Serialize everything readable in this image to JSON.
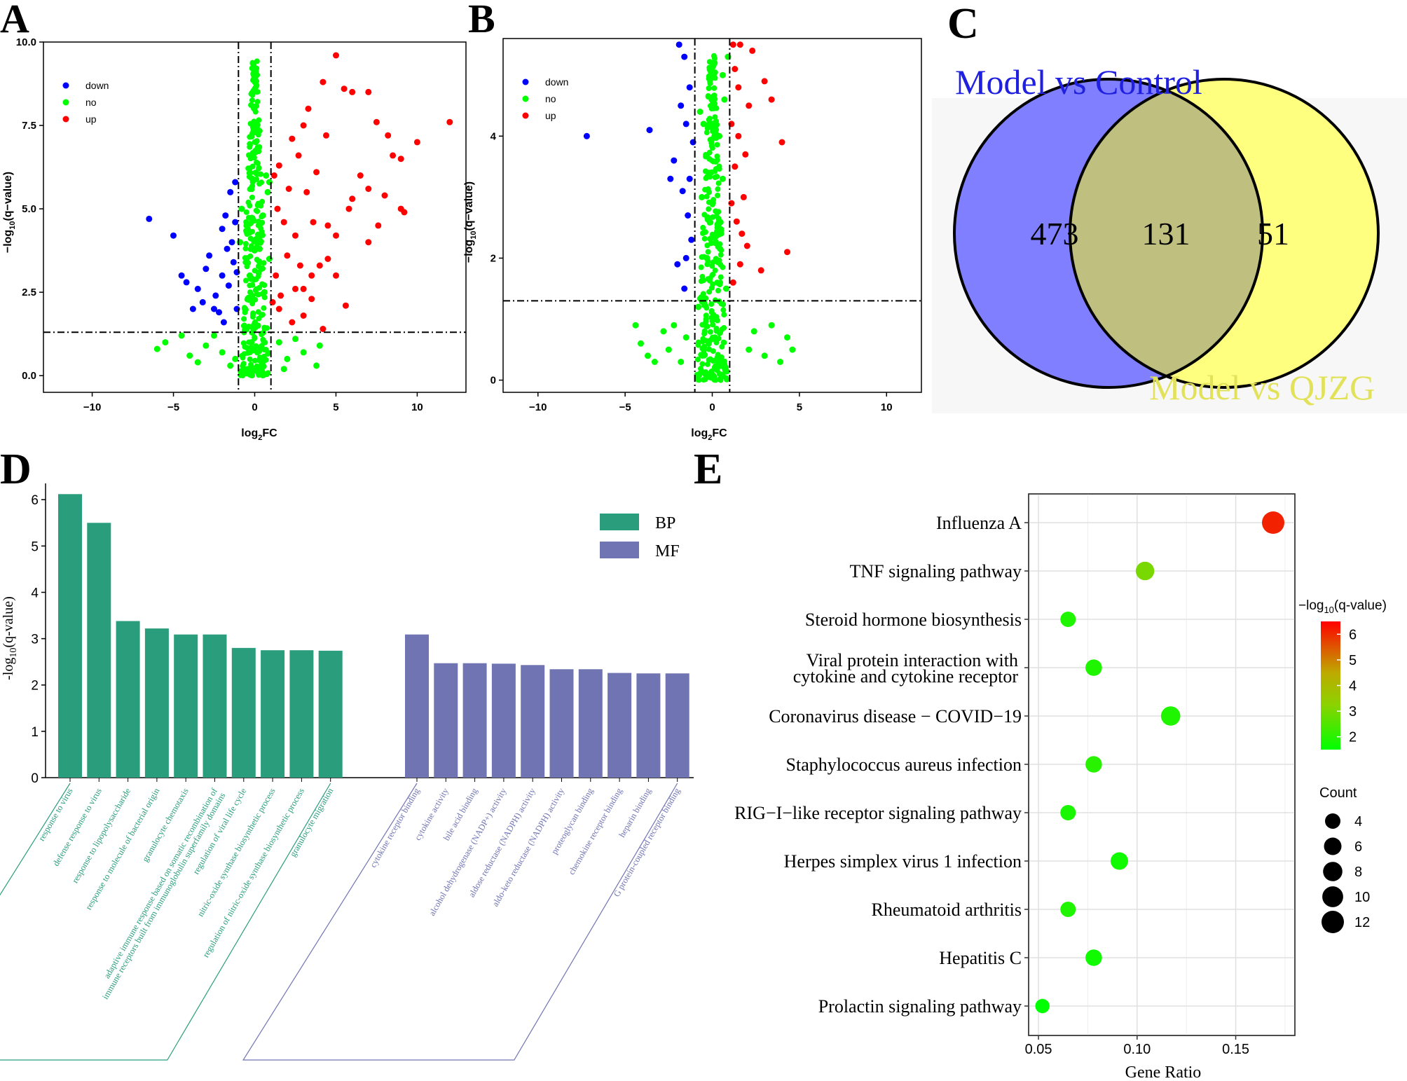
{
  "panel_labels": [
    "A",
    "B",
    "C",
    "D",
    "E"
  ],
  "chart_data": [
    {
      "panel": "A",
      "type": "scatter",
      "title": "",
      "xlabel": "log2FC",
      "ylabel": "-log10(q-value)",
      "xlim": [
        -13,
        13
      ],
      "ylim": [
        -0.5,
        10
      ],
      "xticks": [
        -10,
        -5,
        0,
        5,
        10
      ],
      "yticks": [
        0.0,
        2.5,
        5.0,
        7.5,
        10.0
      ],
      "ytick_labels": [
        "0.0",
        "2.5",
        "5.0",
        "7.5",
        "10.0"
      ],
      "thresholds": {
        "x": [
          -1,
          1
        ],
        "y": 1.3
      },
      "legend": {
        "position": "top-left",
        "entries": [
          {
            "label": "down",
            "color": "#0000ff"
          },
          {
            "label": "no",
            "color": "#00ff00"
          },
          {
            "label": "up",
            "color": "#ff0000"
          }
        ]
      },
      "series": [
        {
          "name": "up",
          "color": "#ff0000",
          "points": [
            [
              5.0,
              9.6
            ],
            [
              4.2,
              8.8
            ],
            [
              5.5,
              8.6
            ],
            [
              6.0,
              8.5
            ],
            [
              7.0,
              8.5
            ],
            [
              12.0,
              7.6
            ],
            [
              10.0,
              7.0
            ],
            [
              7.5,
              7.6
            ],
            [
              8.2,
              7.2
            ],
            [
              8.5,
              6.6
            ],
            [
              9.0,
              6.5
            ],
            [
              6.5,
              6.0
            ],
            [
              7.0,
              5.6
            ],
            [
              6.0,
              5.3
            ],
            [
              5.8,
              5.0
            ],
            [
              9.0,
              5.0
            ],
            [
              8.0,
              5.4
            ],
            [
              9.2,
              4.9
            ],
            [
              7.6,
              4.5
            ],
            [
              7.0,
              4.0
            ],
            [
              5.0,
              4.2
            ],
            [
              4.5,
              3.5
            ],
            [
              5.0,
              3.0
            ],
            [
              4.0,
              3.3
            ],
            [
              3.5,
              3.0
            ],
            [
              3.0,
              2.6
            ],
            [
              5.6,
              2.1
            ],
            [
              2.3,
              1.6
            ],
            [
              4.2,
              1.4
            ],
            [
              3.0,
              1.8
            ],
            [
              3.5,
              2.3
            ],
            [
              2.5,
              2.6
            ],
            [
              4.5,
              4.5
            ],
            [
              3.8,
              6.1
            ],
            [
              4.4,
              7.2
            ],
            [
              3.3,
              8.0
            ],
            [
              3.0,
              7.5
            ],
            [
              2.7,
              6.6
            ],
            [
              3.2,
              5.5
            ],
            [
              2.5,
              4.2
            ],
            [
              1.8,
              4.6
            ],
            [
              2.0,
              3.6
            ],
            [
              1.3,
              3.0
            ],
            [
              1.5,
              2.0
            ],
            [
              1.2,
              6.0
            ],
            [
              1.4,
              5.0
            ],
            [
              1.6,
              2.4
            ],
            [
              2.1,
              5.6
            ],
            [
              2.8,
              3.3
            ],
            [
              3.6,
              4.6
            ],
            [
              2.3,
              7.1
            ],
            [
              1.5,
              6.3
            ],
            [
              1.1,
              2.2
            ]
          ]
        },
        {
          "name": "down",
          "color": "#0000ff",
          "points": [
            [
              -6.5,
              4.7
            ],
            [
              -5.0,
              4.2
            ],
            [
              -4.5,
              3.0
            ],
            [
              -4.2,
              2.8
            ],
            [
              -3.5,
              2.6
            ],
            [
              -3.2,
              2.2
            ],
            [
              -3.0,
              3.2
            ],
            [
              -2.8,
              3.6
            ],
            [
              -2.5,
              2.0
            ],
            [
              -2.2,
              1.9
            ],
            [
              -2.0,
              4.4
            ],
            [
              -1.8,
              4.8
            ],
            [
              -1.5,
              5.5
            ],
            [
              -1.2,
              5.8
            ],
            [
              -1.3,
              3.4
            ],
            [
              -1.6,
              2.7
            ],
            [
              -1.1,
              2.0
            ],
            [
              -2.0,
              3.0
            ],
            [
              -1.4,
              4.0
            ],
            [
              -1.9,
              1.6
            ],
            [
              -1.2,
              4.6
            ],
            [
              -2.4,
              2.4
            ],
            [
              -1.7,
              3.8
            ],
            [
              -1.1,
              3.1
            ],
            [
              -3.8,
              2.0
            ]
          ]
        },
        {
          "name": "no",
          "color": "#00ff00",
          "points": [
            [
              -6.0,
              0.8
            ],
            [
              -5.5,
              1.0
            ],
            [
              -4.5,
              1.2
            ],
            [
              -4.0,
              0.6
            ],
            [
              -3.0,
              0.9
            ],
            [
              -3.5,
              0.4
            ],
            [
              -2.5,
              1.2
            ],
            [
              -2.0,
              0.7
            ],
            [
              -1.5,
              0.3
            ],
            [
              -0.8,
              5.0
            ],
            [
              -0.5,
              4.5
            ],
            [
              0.5,
              4.8
            ],
            [
              0.8,
              5.5
            ],
            [
              0.3,
              3.8
            ],
            [
              -0.3,
              3.0
            ],
            [
              0.6,
              2.5
            ],
            [
              -0.6,
              2.0
            ],
            [
              1.5,
              1.0
            ],
            [
              2.0,
              0.5
            ],
            [
              3.0,
              0.7
            ],
            [
              3.8,
              0.3
            ],
            [
              2.5,
              1.1
            ],
            [
              1.8,
              0.2
            ],
            [
              -1.2,
              0.5
            ],
            [
              0.2,
              1.5
            ],
            [
              -0.2,
              1.0
            ],
            [
              0.4,
              0.5
            ],
            [
              -0.4,
              0.2
            ],
            [
              0.9,
              3.5
            ],
            [
              -0.9,
              4.0
            ],
            [
              0.7,
              6.0
            ],
            [
              0.9,
              5.8
            ],
            [
              4.0,
              0.9
            ]
          ]
        }
      ]
    },
    {
      "panel": "B",
      "type": "scatter",
      "title": "",
      "xlabel": "log2FC",
      "ylabel": "-log10(q-value)",
      "xlim": [
        -12,
        12
      ],
      "ylim": [
        -0.2,
        5.6
      ],
      "xticks": [
        -10,
        -5,
        0,
        5,
        10
      ],
      "yticks": [
        0,
        2,
        4
      ],
      "ytick_labels": [
        "0",
        "2",
        "4"
      ],
      "thresholds": {
        "x": [
          -1,
          1
        ],
        "y": 1.3
      },
      "legend": {
        "position": "top-left",
        "entries": [
          {
            "label": "down",
            "color": "#0000ff"
          },
          {
            "label": "no",
            "color": "#00ff00"
          },
          {
            "label": "up",
            "color": "#ff0000"
          }
        ]
      },
      "series": [
        {
          "name": "up",
          "color": "#ff0000",
          "points": [
            [
              1.2,
              5.5
            ],
            [
              1.6,
              5.5
            ],
            [
              2.3,
              5.4
            ],
            [
              3.0,
              4.9
            ],
            [
              3.4,
              4.6
            ],
            [
              4.0,
              3.9
            ],
            [
              4.3,
              2.1
            ],
            [
              1.5,
              4.8
            ],
            [
              1.1,
              4.2
            ],
            [
              1.3,
              3.5
            ],
            [
              1.8,
              3.0
            ],
            [
              1.4,
              2.6
            ],
            [
              2.0,
              2.2
            ],
            [
              1.6,
              1.9
            ],
            [
              1.2,
              1.6
            ],
            [
              2.8,
              1.8
            ],
            [
              1.5,
              4.0
            ],
            [
              1.9,
              3.7
            ],
            [
              1.1,
              2.9
            ],
            [
              1.7,
              2.4
            ],
            [
              1.3,
              5.1
            ],
            [
              2.1,
              4.5
            ]
          ]
        },
        {
          "name": "down",
          "color": "#0000ff",
          "points": [
            [
              -7.2,
              4.0
            ],
            [
              -3.6,
              4.1
            ],
            [
              -1.9,
              5.5
            ],
            [
              -1.6,
              5.3
            ],
            [
              -1.3,
              4.8
            ],
            [
              -1.8,
              4.5
            ],
            [
              -1.5,
              4.2
            ],
            [
              -2.2,
              3.6
            ],
            [
              -1.7,
              3.1
            ],
            [
              -1.4,
              2.7
            ],
            [
              -1.2,
              2.3
            ],
            [
              -2.0,
              1.9
            ],
            [
              -1.6,
              1.5
            ],
            [
              -1.1,
              3.9
            ],
            [
              -1.3,
              3.3
            ],
            [
              -1.5,
              2.0
            ],
            [
              -2.4,
              3.3
            ]
          ]
        },
        {
          "name": "no",
          "color": "#00ff00",
          "points": [
            [
              -4.4,
              0.9
            ],
            [
              -4.1,
              0.6
            ],
            [
              -3.7,
              0.4
            ],
            [
              -3.3,
              0.3
            ],
            [
              -2.8,
              0.8
            ],
            [
              -2.5,
              0.5
            ],
            [
              -2.2,
              0.9
            ],
            [
              -1.8,
              0.3
            ],
            [
              -1.5,
              0.7
            ],
            [
              2.1,
              0.5
            ],
            [
              2.4,
              0.8
            ],
            [
              3.0,
              0.4
            ],
            [
              3.4,
              0.9
            ],
            [
              3.9,
              0.3
            ],
            [
              4.3,
              0.7
            ],
            [
              4.6,
              0.5
            ],
            [
              -0.5,
              4.2
            ],
            [
              0.4,
              4.0
            ],
            [
              0.6,
              3.3
            ],
            [
              -0.6,
              3.0
            ],
            [
              0.3,
              2.5
            ],
            [
              -0.3,
              2.0
            ],
            [
              0.8,
              1.5
            ],
            [
              -0.8,
              1.2
            ],
            [
              0.2,
              1.0
            ],
            [
              -0.2,
              0.6
            ],
            [
              0.5,
              0.3
            ],
            [
              -0.4,
              0.1
            ],
            [
              0.7,
              4.6
            ],
            [
              -0.7,
              4.4
            ],
            [
              0.9,
              5.3
            ],
            [
              0.6,
              5.0
            ]
          ]
        }
      ]
    },
    {
      "panel": "C",
      "type": "venn",
      "sets": [
        {
          "name": "Model vs Control",
          "color": "#7f7fff",
          "label_color": "#2020e0"
        },
        {
          "name": "Model vs QJZG",
          "color": "#ffff7f",
          "label_color": "#e2e25a"
        }
      ],
      "intersection_color": "#bfbf7f",
      "counts": {
        "only_a": "473",
        "both": "131",
        "only_b": "51"
      }
    },
    {
      "panel": "D",
      "type": "bar",
      "ylabel": "-log10(q-value)",
      "ylim": [
        0,
        6.2
      ],
      "yticks": [
        0,
        1,
        2,
        3,
        4,
        5,
        6
      ],
      "legend": {
        "position": "top-right",
        "entries": [
          {
            "label": "BP",
            "color": "#2a9d7c"
          },
          {
            "label": "MF",
            "color": "#7074b3"
          }
        ]
      },
      "series": [
        {
          "name": "BP",
          "color": "#2a9d7c",
          "categories": [
            "response to virus",
            "defense response to virus",
            "response to lipopolysaccharide",
            "response to molecule of bacterial origin",
            "granulocyte chemotaxis",
            "adaptive immune response based on somatic recombination of immune receptors built from immunoglobulin superfamily domains",
            "regulation of viral life cycle",
            "nitric-oxide synthase biosynthetic process",
            "regulation of nitric-oxide synthase biosynthetic process",
            "granulocyte migration"
          ],
          "values": [
            6.12,
            5.5,
            3.38,
            3.22,
            3.09,
            3.09,
            2.8,
            2.75,
            2.75,
            2.74
          ]
        },
        {
          "name": "MF",
          "color": "#7074b3",
          "categories": [
            "cytokine receptor binding",
            "cytokine activity",
            "bile acid binding",
            "alcohol dehydrogenase (NADP+) activity",
            "aldose reductase (NADPH) activity",
            "aldo-keto reductase (NADPH) activity",
            "proteoglycan binding",
            "chemokine receptor binding",
            "heparin binding",
            "G protein-coupled receptor binding"
          ],
          "values": [
            3.09,
            2.47,
            2.47,
            2.46,
            2.43,
            2.34,
            2.34,
            2.26,
            2.25,
            2.25
          ]
        }
      ]
    },
    {
      "panel": "E",
      "type": "scatter",
      "subtype": "bubble",
      "xlabel": "Gene Ratio",
      "xlim": [
        0.045,
        0.18
      ],
      "xticks": [
        0.05,
        0.1,
        0.15
      ],
      "xtick_labels": [
        "0.05",
        "0.10",
        "0.15"
      ],
      "categories": [
        "Influenza A",
        "TNF signaling pathway",
        "Steroid hormone biosynthesis",
        "Viral protein interaction with\ncytokine and cytokine receptor",
        "Coronavirus disease − COVID−19",
        "Staphylococcus aureus infection",
        "RIG−I−like receptor signaling pathway",
        "Herpes simplex virus 1 infection",
        "Rheumatoid arthritis",
        "Hepatitis C",
        "Prolactin signaling pathway"
      ],
      "gene_ratio": [
        0.169,
        0.104,
        0.065,
        0.078,
        0.117,
        0.078,
        0.065,
        0.091,
        0.065,
        0.078,
        0.052
      ],
      "count": [
        13,
        8,
        5,
        6,
        9,
        6,
        5,
        7,
        5,
        6,
        4
      ],
      "neg_log10_q": [
        6.1,
        3.0,
        1.9,
        1.9,
        1.9,
        2.0,
        1.8,
        1.7,
        1.9,
        1.7,
        1.5
      ],
      "colorbar": {
        "title": "−log10(q-value)",
        "ticks": [
          2,
          3,
          4,
          5,
          6
        ],
        "range": [
          1.5,
          6.5
        ],
        "low_color": "#00ff00",
        "high_color": "#ff0000"
      },
      "size_legend": {
        "title": "Count",
        "values": [
          4,
          6,
          8,
          10,
          12
        ]
      }
    }
  ]
}
